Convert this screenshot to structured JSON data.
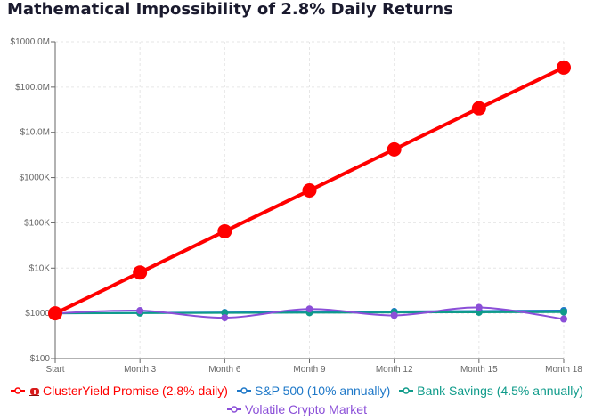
{
  "chart_data": {
    "type": "line",
    "title": "Mathematical Impossibility of 2.8% Daily Returns",
    "categories": [
      "Start",
      "Month 3",
      "Month 6",
      "Month 9",
      "Month 12",
      "Month 15",
      "Month 18"
    ],
    "yscale": "log",
    "ylim": [
      100,
      1000000000
    ],
    "yticks": [
      100,
      1000,
      10000,
      100000,
      1000000,
      10000000,
      100000000,
      1000000000
    ],
    "ytick_labels": [
      "$100",
      "$1000",
      "$10K",
      "$100K",
      "$1000K",
      "$10.0M",
      "$100.0M",
      "$1000.0M"
    ],
    "grid": true,
    "legend_position": "bottom",
    "series": [
      {
        "name": "ClusterYield Promise (2.8% daily)",
        "color": "#ff0000",
        "marker": "warning-sign",
        "values": [
          1000,
          8000,
          65000,
          520000,
          4200000,
          34000000,
          270000000
        ]
      },
      {
        "name": "S&P 500 (10% annually)",
        "color": "#1e78c8",
        "values": [
          1000,
          1024,
          1049,
          1075,
          1100,
          1127,
          1154
        ]
      },
      {
        "name": "Bank Savings (4.5% annually)",
        "color": "#0f9b8a",
        "values": [
          1000,
          1011,
          1022,
          1033,
          1045,
          1056,
          1068
        ]
      },
      {
        "name": "Volatile Crypto Market",
        "color": "#8b4fd8",
        "values": [
          1000,
          1150,
          800,
          1250,
          900,
          1350,
          750
        ]
      }
    ]
  }
}
